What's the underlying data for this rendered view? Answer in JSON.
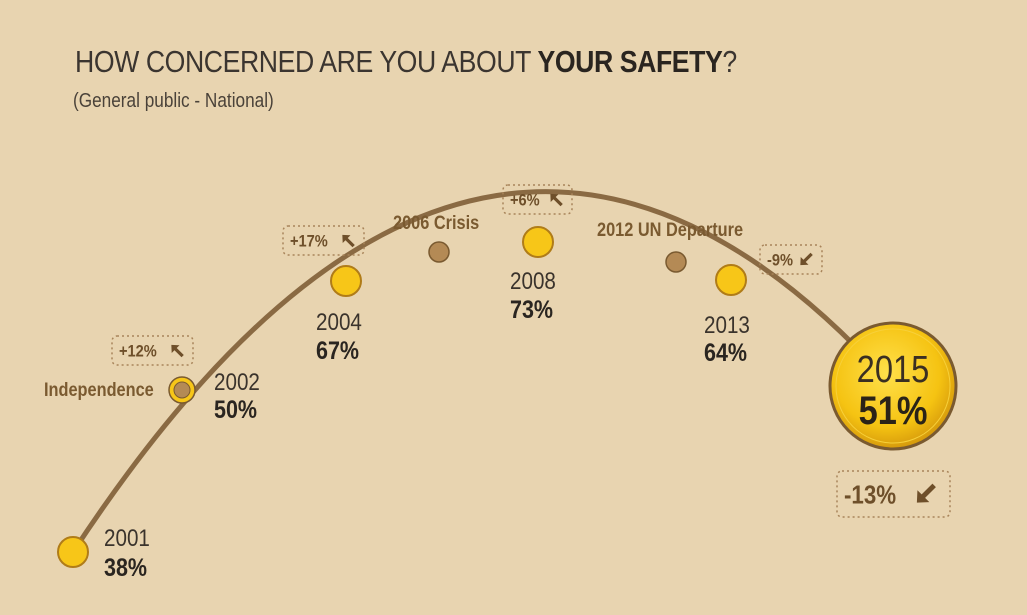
{
  "title": {
    "prefix": "HOW CONCERNED ARE YOU ABOUT ",
    "emphasis": "YOUR SAFETY",
    "suffix": "?"
  },
  "subtitle": "(General public - National)",
  "colors": {
    "background": "#e8d4b0",
    "curve": "#8a6a43",
    "point_fill": "#f7c618",
    "point_stroke": "#b07c18",
    "event_fill": "#b48a55",
    "event_stroke": "#7a5a30",
    "change_text": "#6e4f2a",
    "label_text": "#3a332c"
  },
  "chart_data": {
    "type": "line",
    "y_unit": "%",
    "points": [
      {
        "year": "2001",
        "value": 38,
        "label": "38%"
      },
      {
        "year": "2002",
        "value": 50,
        "label": "50%"
      },
      {
        "year": "2004",
        "value": 67,
        "label": "67%"
      },
      {
        "year": "2008",
        "value": 73,
        "label": "73%"
      },
      {
        "year": "2013",
        "value": 64,
        "label": "64%"
      },
      {
        "year": "2015",
        "value": 51,
        "label": "51%",
        "highlight": true
      }
    ],
    "events": [
      {
        "label": "Independence",
        "at_year": "2002"
      },
      {
        "label": "2006 Crisis"
      },
      {
        "label": "2012 UN Departure"
      }
    ],
    "changes": [
      {
        "text": "+12%",
        "direction": "up",
        "after_year": "2002"
      },
      {
        "text": "+17%",
        "direction": "up",
        "after_year": "2004"
      },
      {
        "text": "+6%",
        "direction": "up",
        "after_year": "2008"
      },
      {
        "text": "-9%",
        "direction": "down",
        "after_year": "2013"
      },
      {
        "text": "-13%",
        "direction": "down",
        "after_year": "2015"
      }
    ]
  }
}
